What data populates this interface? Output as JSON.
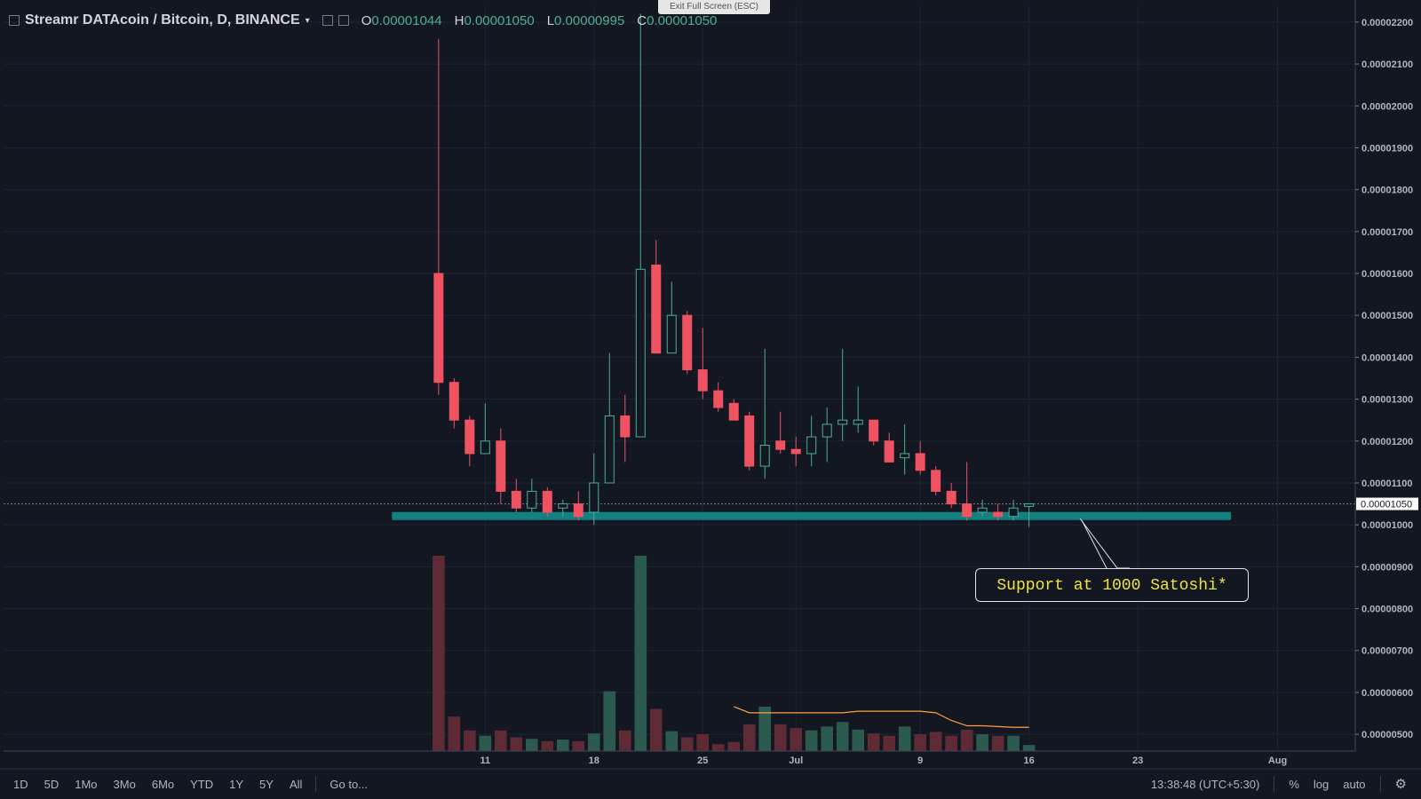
{
  "header": {
    "symbol": "Streamr DATAcoin / Bitcoin, D, BINANCE",
    "open_label": "O",
    "open": "0.00001044",
    "high_label": "H",
    "high": "0.00001050",
    "low_label": "L",
    "low": "0.00000995",
    "close_label": "C",
    "close": "0.00001050"
  },
  "fullscreen_hint": "Exit Full Screen (ESC)",
  "annotation": "Support at 1000 Satoshi*",
  "bottom": {
    "ranges": [
      "1D",
      "5D",
      "1Mo",
      "3Mo",
      "6Mo",
      "YTD",
      "1Y",
      "5Y",
      "All"
    ],
    "goto": "Go to...",
    "time": "13:38:48 (UTC+5:30)",
    "percent": "%",
    "log": "log",
    "auto": "auto"
  },
  "colors": {
    "up": "#4caf93",
    "down": "#ef5361",
    "support": "#138c8c",
    "bg": "#131722"
  },
  "chart_data": {
    "type": "candlestick",
    "y_ticks": [
      "0.00002200",
      "0.00002100",
      "0.00002000",
      "0.00001900",
      "0.00001800",
      "0.00001700",
      "0.00001600",
      "0.00001500",
      "0.00001400",
      "0.00001300",
      "0.00001200",
      "0.00001100",
      "0.00001000",
      "0.00000900",
      "0.00000800",
      "0.00000700",
      "0.00000600",
      "0.00000500"
    ],
    "ylim": [
      4.6e-06,
      2.24e-05
    ],
    "x_ticks": [
      {
        "label": "11",
        "day": 11
      },
      {
        "label": "18",
        "day": 18
      },
      {
        "label": "25",
        "day": 25
      },
      {
        "label": "Jul",
        "day": 31
      },
      {
        "label": "9",
        "day": 39
      },
      {
        "label": "16",
        "day": 46
      },
      {
        "label": "23",
        "day": 53
      },
      {
        "label": "Aug",
        "day": 62
      }
    ],
    "xlim": [
      -20,
      67
    ],
    "last_price_label": "0.00001050",
    "last_price": 1.05e-05,
    "support_level": 1.02e-05,
    "support_span_days": [
      5,
      59
    ],
    "candles": [
      {
        "d": 8,
        "o": 1600,
        "h": 2160,
        "l": 1310,
        "c": 1340
      },
      {
        "d": 9,
        "o": 1340,
        "h": 1350,
        "l": 1230,
        "c": 1250
      },
      {
        "d": 10,
        "o": 1250,
        "h": 1260,
        "l": 1140,
        "c": 1170
      },
      {
        "d": 11,
        "o": 1170,
        "h": 1290,
        "l": 1170,
        "c": 1200
      },
      {
        "d": 12,
        "o": 1200,
        "h": 1230,
        "l": 1050,
        "c": 1080
      },
      {
        "d": 13,
        "o": 1080,
        "h": 1110,
        "l": 1030,
        "c": 1040
      },
      {
        "d": 14,
        "o": 1040,
        "h": 1110,
        "l": 1030,
        "c": 1080
      },
      {
        "d": 15,
        "o": 1080,
        "h": 1090,
        "l": 1020,
        "c": 1030
      },
      {
        "d": 16,
        "o": 1040,
        "h": 1060,
        "l": 1020,
        "c": 1050
      },
      {
        "d": 17,
        "o": 1050,
        "h": 1080,
        "l": 1010,
        "c": 1020
      },
      {
        "d": 18,
        "o": 1030,
        "h": 1170,
        "l": 1000,
        "c": 1100
      },
      {
        "d": 19,
        "o": 1100,
        "h": 1410,
        "l": 1100,
        "c": 1260
      },
      {
        "d": 20,
        "o": 1260,
        "h": 1310,
        "l": 1150,
        "c": 1210
      },
      {
        "d": 21,
        "o": 1210,
        "h": 2220,
        "l": 1210,
        "c": 1610
      },
      {
        "d": 22,
        "o": 1620,
        "h": 1680,
        "l": 1410,
        "c": 1410
      },
      {
        "d": 23,
        "o": 1410,
        "h": 1580,
        "l": 1410,
        "c": 1500
      },
      {
        "d": 24,
        "o": 1500,
        "h": 1510,
        "l": 1360,
        "c": 1370
      },
      {
        "d": 25,
        "o": 1370,
        "h": 1470,
        "l": 1300,
        "c": 1320
      },
      {
        "d": 26,
        "o": 1320,
        "h": 1340,
        "l": 1270,
        "c": 1280
      },
      {
        "d": 27,
        "o": 1290,
        "h": 1300,
        "l": 1250,
        "c": 1250
      },
      {
        "d": 28,
        "o": 1260,
        "h": 1270,
        "l": 1130,
        "c": 1140
      },
      {
        "d": 29,
        "o": 1140,
        "h": 1420,
        "l": 1110,
        "c": 1190
      },
      {
        "d": 30,
        "o": 1200,
        "h": 1270,
        "l": 1170,
        "c": 1180
      },
      {
        "d": 31,
        "o": 1180,
        "h": 1210,
        "l": 1140,
        "c": 1170
      },
      {
        "d": 32,
        "o": 1170,
        "h": 1260,
        "l": 1140,
        "c": 1210
      },
      {
        "d": 33,
        "o": 1210,
        "h": 1280,
        "l": 1150,
        "c": 1240
      },
      {
        "d": 34,
        "o": 1240,
        "h": 1420,
        "l": 1200,
        "c": 1250
      },
      {
        "d": 35,
        "o": 1240,
        "h": 1330,
        "l": 1220,
        "c": 1250
      },
      {
        "d": 36,
        "o": 1250,
        "h": 1250,
        "l": 1190,
        "c": 1200
      },
      {
        "d": 37,
        "o": 1200,
        "h": 1220,
        "l": 1150,
        "c": 1150
      },
      {
        "d": 38,
        "o": 1160,
        "h": 1240,
        "l": 1120,
        "c": 1170
      },
      {
        "d": 39,
        "o": 1170,
        "h": 1200,
        "l": 1120,
        "c": 1130
      },
      {
        "d": 40,
        "o": 1130,
        "h": 1140,
        "l": 1070,
        "c": 1080
      },
      {
        "d": 41,
        "o": 1080,
        "h": 1100,
        "l": 1040,
        "c": 1050
      },
      {
        "d": 42,
        "o": 1050,
        "h": 1150,
        "l": 1010,
        "c": 1020
      },
      {
        "d": 43,
        "o": 1030,
        "h": 1060,
        "l": 1020,
        "c": 1040
      },
      {
        "d": 44,
        "o": 1030,
        "h": 1050,
        "l": 1010,
        "c": 1020
      },
      {
        "d": 45,
        "o": 1020,
        "h": 1060,
        "l": 1010,
        "c": 1040
      },
      {
        "d": 46,
        "o": 1044,
        "h": 1050,
        "l": 995,
        "c": 1050
      }
    ],
    "volume_max": 2.55,
    "volumes": [
      2.55,
      0.45,
      0.27,
      0.2,
      0.27,
      0.18,
      0.16,
      0.13,
      0.15,
      0.13,
      0.23,
      0.78,
      0.27,
      2.55,
      0.55,
      0.26,
      0.18,
      0.22,
      0.09,
      0.12,
      0.35,
      0.58,
      0.35,
      0.3,
      0.27,
      0.32,
      0.38,
      0.28,
      0.23,
      0.2,
      0.32,
      0.22,
      0.25,
      0.2,
      0.28,
      0.22,
      0.2,
      0.2,
      0.08
    ],
    "volume_ma": [
      null,
      null,
      null,
      null,
      null,
      null,
      null,
      null,
      null,
      null,
      null,
      null,
      null,
      null,
      null,
      null,
      null,
      null,
      null,
      0.58,
      0.5,
      0.5,
      0.5,
      0.5,
      0.5,
      0.5,
      0.5,
      0.52,
      0.52,
      0.52,
      0.52,
      0.52,
      0.5,
      0.4,
      0.33,
      0.33,
      0.32,
      0.31,
      0.31
    ]
  }
}
